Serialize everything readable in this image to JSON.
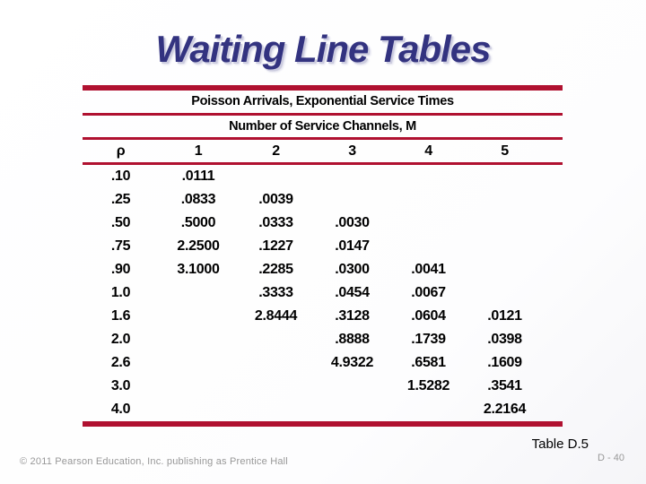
{
  "slide": {
    "title": "Waiting Line Tables",
    "table": {
      "subtitle_arrivals": "Poisson Arrivals, Exponential Service Times",
      "subtitle_channels": "Number of Service Channels, M",
      "columns": [
        "ρ",
        "1",
        "2",
        "3",
        "4",
        "5"
      ],
      "rows": [
        [
          ".10",
          ".0111",
          "",
          "",
          "",
          ""
        ],
        [
          ".25",
          ".0833",
          ".0039",
          "",
          "",
          ""
        ],
        [
          ".50",
          ".5000",
          ".0333",
          ".0030",
          "",
          ""
        ],
        [
          ".75",
          "2.2500",
          ".1227",
          ".0147",
          "",
          ""
        ],
        [
          ".90",
          "3.1000",
          ".2285",
          ".0300",
          ".0041",
          ""
        ],
        [
          "1.0",
          "",
          ".3333",
          ".0454",
          ".0067",
          ""
        ],
        [
          "1.6",
          "",
          "2.8444",
          ".3128",
          ".0604",
          ".0121"
        ],
        [
          "2.0",
          "",
          "",
          ".8888",
          ".1739",
          ".0398"
        ],
        [
          "2.6",
          "",
          "",
          "4.9322",
          ".6581",
          ".1609"
        ],
        [
          "3.0",
          "",
          "",
          "",
          "1.5282",
          ".3541"
        ],
        [
          "4.0",
          "",
          "",
          "",
          "",
          "2.2164"
        ]
      ],
      "caption": "Table D.5"
    },
    "footer": {
      "copyright": "© 2011 Pearson Education, Inc. publishing as Prentice Hall",
      "page": "D - 40"
    },
    "colors": {
      "accent_red": "#b01130",
      "title_blue": "#333380",
      "footer_gray": "#989898",
      "text": "#000000"
    }
  }
}
